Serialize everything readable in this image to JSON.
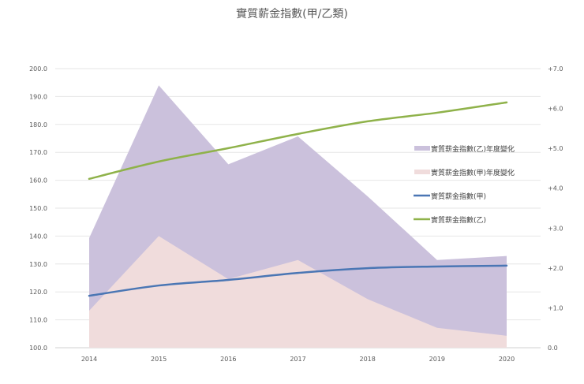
{
  "chart_data": {
    "type": "line",
    "title": "實質薪金指數(甲/乙類)",
    "categories": [
      "2014",
      "2015",
      "2016",
      "2017",
      "2018",
      "2019",
      "2020"
    ],
    "y_left": {
      "min": 100,
      "max": 200,
      "step": 10,
      "ticks": [
        "100.0",
        "110.0",
        "120.0",
        "130.0",
        "140.0",
        "150.0",
        "160.0",
        "170.0",
        "180.0",
        "190.0",
        "200.0"
      ]
    },
    "y_right": {
      "min": 0,
      "max": 7,
      "step": 1,
      "ticks": [
        "0.0",
        "+1.0",
        "+2.0",
        "+3.0",
        "+4.0",
        "+5.0",
        "+6.0",
        "+7.0"
      ]
    },
    "grid": true,
    "legend_position": "right",
    "series": [
      {
        "name": "實質薪金指數(乙)年度變化",
        "kind": "area",
        "axis": "right",
        "color": "#cbc1dc",
        "values": [
          2.75,
          6.58,
          4.6,
          5.3,
          3.8,
          2.2,
          2.3
        ]
      },
      {
        "name": "實質薪金指數(甲)年度變化",
        "kind": "area",
        "axis": "right",
        "color": "#f0dcdc",
        "values": [
          0.93,
          2.8,
          1.72,
          2.2,
          1.22,
          0.5,
          0.3
        ]
      },
      {
        "name": "實質薪金指數(甲)",
        "kind": "line",
        "axis": "left",
        "color": "#4a76b4",
        "values": [
          118.6,
          122.3,
          124.3,
          126.8,
          128.5,
          129.1,
          129.4
        ]
      },
      {
        "name": "實質薪金指數(乙)",
        "kind": "line",
        "axis": "left",
        "color": "#8fb24a",
        "values": [
          160.5,
          166.7,
          171.5,
          176.6,
          181.1,
          184.2,
          187.9
        ]
      }
    ]
  }
}
